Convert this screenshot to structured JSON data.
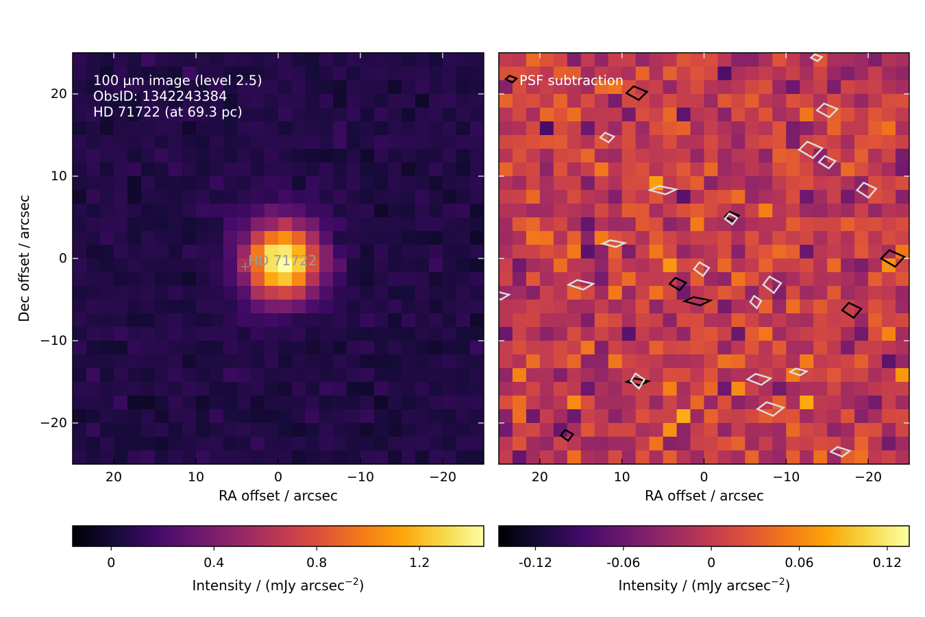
{
  "chart_data": [
    {
      "type": "heatmap",
      "panel": "left",
      "annotation_lines": [
        "100 µm image (level 2.5)",
        "ObsID: 1342243384",
        "HD 71722 (at 69.3 pc)"
      ],
      "marker_label": "HD  71722",
      "marker_position": [
        4,
        -1
      ],
      "xlabel": "RA offset / arcsec",
      "ylabel": "Dec offset / arcsec",
      "xlim": [
        25,
        -25
      ],
      "ylim": [
        -25,
        25
      ],
      "xticks": [
        {
          "v": 20,
          "label": "20"
        },
        {
          "v": 10,
          "label": "10"
        },
        {
          "v": 0,
          "label": "0"
        },
        {
          "v": -10,
          "label": "−10"
        },
        {
          "v": -20,
          "label": "−20"
        }
      ],
      "yticks": [
        {
          "v": 20,
          "label": "20"
        },
        {
          "v": 10,
          "label": "10"
        },
        {
          "v": 0,
          "label": "0"
        },
        {
          "v": -10,
          "label": "−10"
        },
        {
          "v": -20,
          "label": "−20"
        }
      ],
      "colormap": "inferno",
      "source_peak": {
        "ra": -0.5,
        "dec": -0.3,
        "peak": 1.45,
        "sigma_arcsec": 3.2
      },
      "background_level": 0.05,
      "colorbar": {
        "label": "Intensity / (mJy arcsec",
        "label_exponent": "−2",
        "label_close": ")",
        "range": [
          -0.15,
          1.45
        ],
        "ticks": [
          {
            "v": 0,
            "label": "0"
          },
          {
            "v": 0.4,
            "label": "0.4"
          },
          {
            "v": 0.8,
            "label": "0.8"
          },
          {
            "v": 1.2,
            "label": "1.2"
          }
        ]
      }
    },
    {
      "type": "heatmap",
      "panel": "right",
      "annotation_lines": [
        "PSF subtraction"
      ],
      "xlabel": "RA offset / arcsec",
      "xlim": [
        25,
        -25
      ],
      "ylim": [
        -25,
        25
      ],
      "xticks": [
        {
          "v": 20,
          "label": "20"
        },
        {
          "v": 10,
          "label": "10"
        },
        {
          "v": 0,
          "label": "0"
        },
        {
          "v": -10,
          "label": "−10"
        },
        {
          "v": -20,
          "label": "−20"
        }
      ],
      "colormap": "inferno",
      "residual_level": 0.0,
      "contours": {
        "positive": [
          [
            23.5,
            21.8
          ],
          [
            8.2,
            20.1
          ],
          [
            -3.4,
            5.1
          ],
          [
            -23,
            0
          ],
          [
            3.2,
            -3.1
          ],
          [
            0.8,
            -5.2
          ],
          [
            -18,
            -6.3
          ],
          [
            16.7,
            -21.5
          ],
          [
            8.1,
            -15
          ]
        ],
        "negative": [
          [
            -13.7,
            24.4
          ],
          [
            -15,
            18
          ],
          [
            11.8,
            14.7
          ],
          [
            -13,
            13.2
          ],
          [
            -15,
            11.7
          ],
          [
            5,
            8.3
          ],
          [
            -19.8,
            8.3
          ],
          [
            -3.3,
            4.8
          ],
          [
            11,
            1.8
          ],
          [
            0.3,
            -1.3
          ],
          [
            15,
            -3.2
          ],
          [
            -8.3,
            -3.2
          ],
          [
            -6.3,
            -5.3
          ],
          [
            25,
            -4.5
          ],
          [
            8.1,
            -14.9
          ],
          [
            -6.7,
            -14.7
          ],
          [
            -11.5,
            -13.8
          ],
          [
            -8.1,
            -18.3
          ],
          [
            -16.6,
            -23.5
          ]
        ]
      },
      "colorbar": {
        "label": "Intensity / (mJy arcsec",
        "label_exponent": "−2",
        "label_close": ")",
        "range": [
          -0.145,
          0.135
        ],
        "ticks": [
          {
            "v": -0.12,
            "label": "-0.12"
          },
          {
            "v": -0.06,
            "label": "-0.06"
          },
          {
            "v": 0,
            "label": "0"
          },
          {
            "v": 0.06,
            "label": "0.06"
          },
          {
            "v": 0.12,
            "label": "0.12"
          }
        ]
      }
    }
  ]
}
